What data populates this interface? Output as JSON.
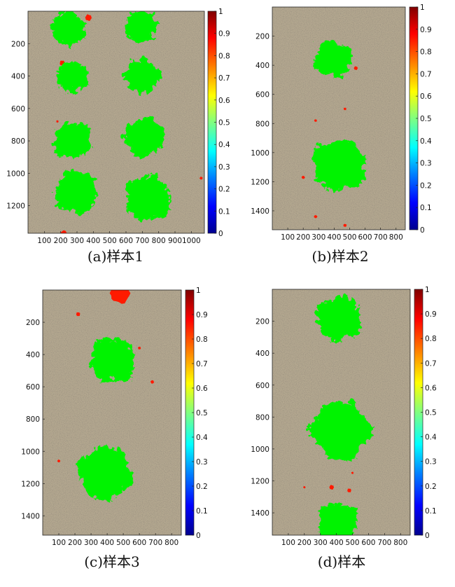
{
  "colorbar_gradient": [
    "#00008f",
    "#0000ff",
    "#0080ff",
    "#00ffff",
    "#80ff80",
    "#ffff00",
    "#ff8000",
    "#ff0000",
    "#800000"
  ],
  "colors": {
    "soil": "#b3a78f",
    "plant_mask": "#00f300",
    "weed_mask": "#ff1a00"
  },
  "chart_data": [
    {
      "type": "heatmap",
      "caption": "(a)样本1",
      "x_ticks": [
        100,
        200,
        300,
        400,
        500,
        600,
        700,
        800,
        900,
        1000
      ],
      "y_ticks": [
        200,
        400,
        600,
        800,
        1000,
        1200
      ],
      "xlim": [
        0,
        1080
      ],
      "ylim": [
        0,
        1370
      ],
      "colorbar": {
        "range": [
          0,
          1
        ],
        "ticks": [
          0,
          0.1,
          0.2,
          0.3,
          0.4,
          0.5,
          0.6,
          0.7,
          0.8,
          0.9,
          1
        ]
      },
      "plants": [
        {
          "x": 230,
          "y": 90,
          "r": 120
        },
        {
          "x": 680,
          "y": 80,
          "r": 115
        },
        {
          "x": 260,
          "y": 390,
          "r": 110
        },
        {
          "x": 680,
          "y": 390,
          "r": 120
        },
        {
          "x": 260,
          "y": 780,
          "r": 130
        },
        {
          "x": 700,
          "y": 760,
          "r": 135
        },
        {
          "x": 280,
          "y": 1100,
          "r": 150
        },
        {
          "x": 720,
          "y": 1140,
          "r": 160
        }
      ],
      "weeds": [
        {
          "x": 370,
          "y": 40,
          "r": 22
        },
        {
          "x": 210,
          "y": 320,
          "r": 18
        },
        {
          "x": 180,
          "y": 680,
          "r": 8
        },
        {
          "x": 220,
          "y": 1370,
          "r": 20
        },
        {
          "x": 1060,
          "y": 1030,
          "r": 10
        }
      ]
    },
    {
      "type": "heatmap",
      "caption": "(b)样本2",
      "x_ticks": [
        100,
        200,
        300,
        400,
        500,
        600,
        700,
        800
      ],
      "y_ticks": [
        200,
        400,
        600,
        800,
        1000,
        1200,
        1400
      ],
      "xlim": [
        0,
        860
      ],
      "ylim": [
        0,
        1530
      ],
      "colorbar": {
        "range": [
          0,
          1
        ],
        "ticks": [
          0,
          0.1,
          0.2,
          0.3,
          0.4,
          0.5,
          0.6,
          0.7,
          0.8,
          0.9,
          1
        ]
      },
      "plants": [
        {
          "x": 380,
          "y": 340,
          "r": 140
        },
        {
          "x": 420,
          "y": 1070,
          "r": 200
        }
      ],
      "weeds": [
        {
          "x": 540,
          "y": 420,
          "r": 14
        },
        {
          "x": 470,
          "y": 700,
          "r": 10
        },
        {
          "x": 280,
          "y": 780,
          "r": 10
        },
        {
          "x": 200,
          "y": 1170,
          "r": 12
        },
        {
          "x": 280,
          "y": 1440,
          "r": 12
        },
        {
          "x": 470,
          "y": 1500,
          "r": 12
        }
      ]
    },
    {
      "type": "heatmap",
      "caption": "(c)样本3",
      "x_ticks": [
        100,
        200,
        300,
        400,
        500,
        600,
        700,
        800
      ],
      "y_ticks": [
        200,
        400,
        600,
        800,
        1000,
        1200,
        1400
      ],
      "xlim": [
        0,
        860
      ],
      "ylim": [
        0,
        1520
      ],
      "colorbar": {
        "range": [
          0,
          1
        ],
        "ticks": [
          0,
          0.1,
          0.2,
          0.3,
          0.4,
          0.5,
          0.6,
          0.7,
          0.8,
          0.9,
          1
        ]
      },
      "plants": [
        {
          "x": 420,
          "y": 420,
          "r": 160
        },
        {
          "x": 370,
          "y": 1120,
          "r": 190
        }
      ],
      "weeds": [
        {
          "x": 480,
          "y": 20,
          "r": 70
        },
        {
          "x": 220,
          "y": 150,
          "r": 14
        },
        {
          "x": 600,
          "y": 360,
          "r": 10
        },
        {
          "x": 680,
          "y": 570,
          "r": 12
        },
        {
          "x": 100,
          "y": 1060,
          "r": 10
        }
      ]
    },
    {
      "type": "heatmap",
      "caption": "(d)样本",
      "x_ticks": [
        100,
        200,
        300,
        400,
        500,
        600,
        700,
        800
      ],
      "y_ticks": [
        200,
        400,
        600,
        800,
        1000,
        1200,
        1400
      ],
      "xlim": [
        0,
        860
      ],
      "ylim": [
        0,
        1540
      ],
      "colorbar": {
        "range": [
          0,
          1
        ],
        "ticks": [
          0,
          0.1,
          0.2,
          0.3,
          0.4,
          0.5,
          0.6,
          0.7,
          0.8,
          0.9,
          1
        ]
      },
      "plants": [
        {
          "x": 400,
          "y": 170,
          "r": 160
        },
        {
          "x": 410,
          "y": 870,
          "r": 210
        },
        {
          "x": 390,
          "y": 1440,
          "r": 140
        }
      ],
      "weeds": [
        {
          "x": 370,
          "y": 1240,
          "r": 16
        },
        {
          "x": 480,
          "y": 1260,
          "r": 14
        },
        {
          "x": 500,
          "y": 1150,
          "r": 8
        },
        {
          "x": 200,
          "y": 1240,
          "r": 8
        }
      ]
    }
  ]
}
